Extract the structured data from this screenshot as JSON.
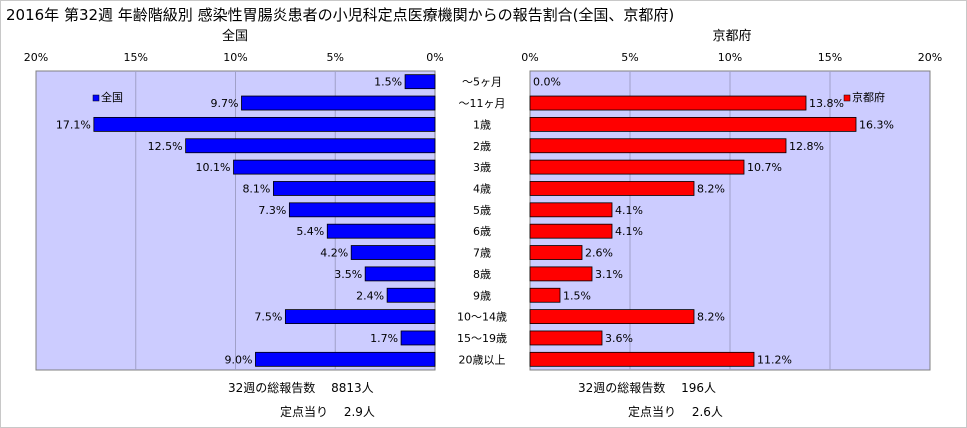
{
  "title": "2016年 第32週 年齢階級別 感染性胃腸炎患者の小児科定点医療機関からの報告割合(全国、京都府)",
  "chart_data": [
    {
      "type": "bar",
      "orientation": "horizontal",
      "direction": "right-to-left",
      "heading": "全国",
      "legend": "全国",
      "legend_position": "top-left",
      "color": "#0000ff",
      "categories": [
        "～5ヶ月",
        "～11ヶ月",
        "1歳",
        "2歳",
        "3歳",
        "4歳",
        "5歳",
        "6歳",
        "7歳",
        "8歳",
        "9歳",
        "10～14歳",
        "15～19歳",
        "20歳以上"
      ],
      "values": [
        1.5,
        9.7,
        17.1,
        12.5,
        10.1,
        8.1,
        7.3,
        5.4,
        4.2,
        3.5,
        2.4,
        7.5,
        1.7,
        9.0
      ],
      "value_labels": [
        "1.5%",
        "9.7%",
        "17.1%",
        "12.5%",
        "10.1%",
        "8.1%",
        "7.3%",
        "5.4%",
        "4.2%",
        "3.5%",
        "2.4%",
        "7.5%",
        "1.7%",
        "9.0%"
      ],
      "xlim": [
        0,
        20
      ],
      "ticks": [
        "20%",
        "15%",
        "10%",
        "5%",
        "0%"
      ],
      "grid": true,
      "footer": {
        "reports": "32週の総報告数　 8813人",
        "per_site": "定点当り　 2.9人"
      }
    },
    {
      "type": "bar",
      "orientation": "horizontal",
      "direction": "left-to-right",
      "heading": "京都府",
      "legend": "京都府",
      "legend_position": "top-right",
      "color": "#ff0000",
      "categories": [
        "～5ヶ月",
        "～11ヶ月",
        "1歳",
        "2歳",
        "3歳",
        "4歳",
        "5歳",
        "6歳",
        "7歳",
        "8歳",
        "9歳",
        "10～14歳",
        "15～19歳",
        "20歳以上"
      ],
      "values": [
        0.0,
        13.8,
        16.3,
        12.8,
        10.7,
        8.2,
        4.1,
        4.1,
        2.6,
        3.1,
        1.5,
        8.2,
        3.6,
        11.2
      ],
      "value_labels": [
        "0.0%",
        "13.8%",
        "16.3%",
        "12.8%",
        "10.7%",
        "8.2%",
        "4.1%",
        "4.1%",
        "2.6%",
        "3.1%",
        "1.5%",
        "8.2%",
        "3.6%",
        "11.2%"
      ],
      "xlim": [
        0,
        20
      ],
      "ticks": [
        "0%",
        "5%",
        "10%",
        "15%",
        "20%"
      ],
      "grid": true,
      "footer": {
        "reports": "32週の総報告数　 196人",
        "per_site": "定点当り　 2.6人"
      }
    }
  ],
  "colors": {
    "plot_background": "#ccccff",
    "national": "#0000ff",
    "kyoto": "#ff0000"
  }
}
